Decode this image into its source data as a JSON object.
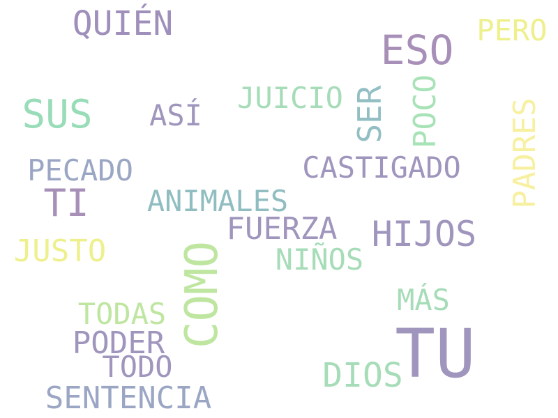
{
  "colors": {
    "purple": "#9f8fbb",
    "green": "#a3dcb6",
    "teal": "#8fbdc0",
    "slate": "#9aa6c4",
    "yellow": "#eef08e",
    "pale_yellow": "#f7f0a0",
    "lime": "#bfe6a0"
  },
  "words": [
    {
      "text": "QUIÉN",
      "color": "#9f8fbb",
      "weight": 42,
      "orientation": "horizontal"
    },
    {
      "text": "ESO",
      "color": "#a78fb8",
      "weight": 54,
      "orientation": "horizontal"
    },
    {
      "text": "PERO",
      "color": "#eef08e",
      "weight": 40,
      "orientation": "horizontal"
    },
    {
      "text": "SUS",
      "color": "#98dcb8",
      "weight": 54,
      "orientation": "horizontal"
    },
    {
      "text": "ASÍ",
      "color": "#a095bd",
      "weight": 40,
      "orientation": "horizontal"
    },
    {
      "text": "JUICIO",
      "color": "#a6dcb8",
      "weight": 40,
      "orientation": "horizontal"
    },
    {
      "text": "SER",
      "color": "#93bfc4",
      "weight": 44,
      "orientation": "vertical"
    },
    {
      "text": "POCO",
      "color": "#a7e3b6",
      "weight": 44,
      "orientation": "vertical"
    },
    {
      "text": "PADRES",
      "color": "#f7f0a0",
      "weight": 44,
      "orientation": "vertical"
    },
    {
      "text": "PECADO",
      "color": "#9aa6c4",
      "weight": 40,
      "orientation": "horizontal"
    },
    {
      "text": "CASTIGADO",
      "color": "#a095bd",
      "weight": 40,
      "orientation": "horizontal"
    },
    {
      "text": "TI",
      "color": "#a78fb8",
      "weight": 50,
      "orientation": "horizontal"
    },
    {
      "text": "ANIMALES",
      "color": "#8fbdc0",
      "weight": 42,
      "orientation": "horizontal"
    },
    {
      "text": "FUERZA",
      "color": "#a095bd",
      "weight": 42,
      "orientation": "horizontal"
    },
    {
      "text": "HIJOS",
      "color": "#a095bd",
      "weight": 50,
      "orientation": "horizontal"
    },
    {
      "text": "JUSTO",
      "color": "#eef08e",
      "weight": 42,
      "orientation": "horizontal"
    },
    {
      "text": "COMO",
      "color": "#bfe6a0",
      "weight": 60,
      "orientation": "vertical"
    },
    {
      "text": "NIÑOS",
      "color": "#a6dcb8",
      "weight": 40,
      "orientation": "horizontal"
    },
    {
      "text": "MÁS",
      "color": "#a6dcb8",
      "weight": 40,
      "orientation": "horizontal"
    },
    {
      "text": "TODAS",
      "color": "#bfe6a0",
      "weight": 40,
      "orientation": "horizontal"
    },
    {
      "text": "PODER",
      "color": "#a095bd",
      "weight": 42,
      "orientation": "horizontal"
    },
    {
      "text": "TU",
      "color": "#a095bd",
      "weight": 90,
      "orientation": "horizontal"
    },
    {
      "text": "TODO",
      "color": "#a095bd",
      "weight": 40,
      "orientation": "horizontal"
    },
    {
      "text": "DIOS",
      "color": "#a6dcb8",
      "weight": 46,
      "orientation": "horizontal"
    },
    {
      "text": "SENTENCIA",
      "color": "#9aa6c4",
      "weight": 42,
      "orientation": "horizontal"
    }
  ]
}
